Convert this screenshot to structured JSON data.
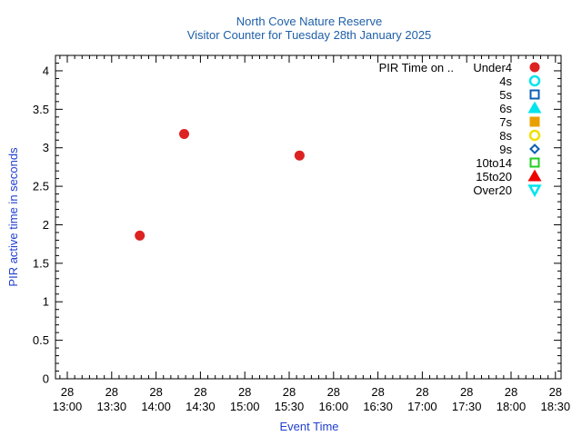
{
  "chart_data": {
    "type": "scatter",
    "title": "North Cove Nature Reserve",
    "subtitle": "Visitor Counter for Tuesday 28th January 2025",
    "xlabel": "Event Time",
    "ylabel": "PIR active time in seconds",
    "xlim": [
      "28 13:00",
      "28 18:30"
    ],
    "ylim": [
      0,
      4.2
    ],
    "x_ticks": [
      {
        "day": "28",
        "time": "13:00"
      },
      {
        "day": "28",
        "time": "13:30"
      },
      {
        "day": "28",
        "time": "14:00"
      },
      {
        "day": "28",
        "time": "14:30"
      },
      {
        "day": "28",
        "time": "15:00"
      },
      {
        "day": "28",
        "time": "15:30"
      },
      {
        "day": "28",
        "time": "16:00"
      },
      {
        "day": "28",
        "time": "16:30"
      },
      {
        "day": "28",
        "time": "17:00"
      },
      {
        "day": "28",
        "time": "17:30"
      },
      {
        "day": "28",
        "time": "18:00"
      },
      {
        "day": "28",
        "time": "18:30"
      }
    ],
    "y_ticks": [
      "0",
      "0.5",
      "1",
      "1.5",
      "2",
      "2.5",
      "3",
      "3.5",
      "4"
    ],
    "legend_title": "PIR Time on ..",
    "legend_position": "top-right",
    "grid": false,
    "series": [
      {
        "name": "Under4",
        "marker": "filled-circle",
        "color": "#dd2222",
        "points": [
          {
            "x": "28 13:49",
            "y": 1.86
          },
          {
            "x": "28 14:19",
            "y": 3.18
          },
          {
            "x": "28 15:37",
            "y": 2.9
          }
        ]
      },
      {
        "name": "4s",
        "marker": "open-circle",
        "color": "#00e5ee",
        "points": []
      },
      {
        "name": "5s",
        "marker": "open-square",
        "color": "#0a5fb4",
        "points": []
      },
      {
        "name": "6s",
        "marker": "filled-triangle",
        "color": "#00e5ee",
        "points": []
      },
      {
        "name": "7s",
        "marker": "filled-square",
        "color": "#e8a000",
        "points": []
      },
      {
        "name": "8s",
        "marker": "open-circle",
        "color": "#f0e000",
        "points": []
      },
      {
        "name": "9s",
        "marker": "open-diamond",
        "color": "#0a5fb4",
        "points": []
      },
      {
        "name": "10to14",
        "marker": "open-square",
        "color": "#22cc22",
        "points": []
      },
      {
        "name": "15to20",
        "marker": "filled-triangle",
        "color": "#ee0000",
        "points": []
      },
      {
        "name": "Over20",
        "marker": "open-triangle-down",
        "color": "#00e5ee",
        "points": []
      }
    ]
  }
}
